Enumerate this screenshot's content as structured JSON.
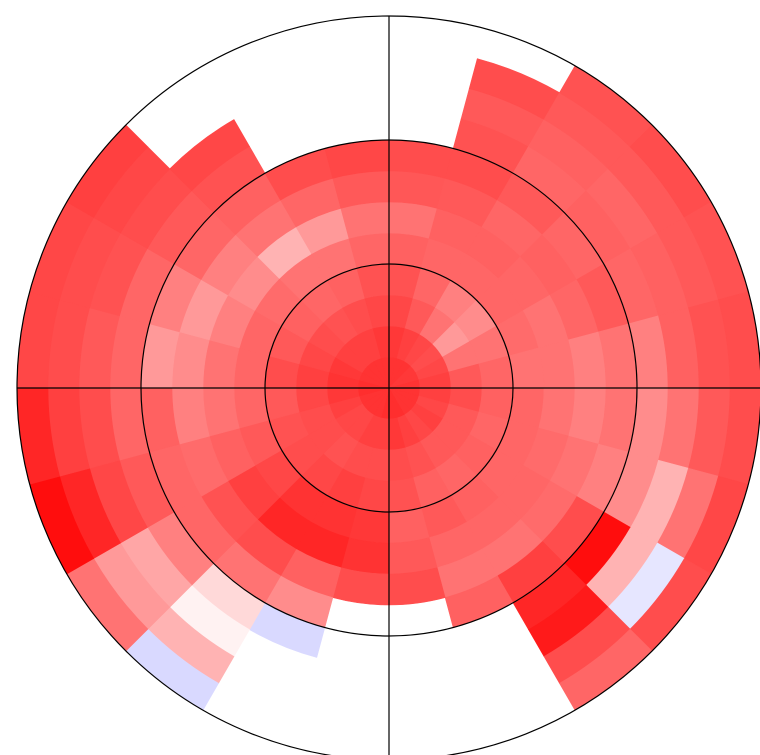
{
  "chart_data": {
    "type": "polar_heatmap",
    "direction": "clockwise",
    "zero_location": "N",
    "rlim": [
      0,
      12
    ],
    "rticks": [
      4,
      8,
      12
    ],
    "thetalim": [
      0,
      360
    ],
    "theta_ticks": [
      0,
      90,
      180,
      270
    ],
    "grid": true,
    "clim": [
      -1,
      1
    ],
    "colors": {
      "low": "#0000ff",
      "mid": "#ffffff",
      "high": "#ff0000"
    },
    "values": [
      [
        0.8,
        0.78,
        0.72,
        0.68,
        0.62,
        0.55,
        0.66,
        0.7,
        null,
        null,
        null,
        null
      ],
      [
        0.8,
        0.75,
        0.65,
        0.6,
        0.6,
        0.62,
        0.65,
        0.7,
        0.68,
        0.65,
        0.7,
        null
      ],
      [
        0.8,
        0.72,
        0.55,
        0.5,
        0.6,
        0.62,
        0.6,
        0.65,
        0.6,
        0.62,
        0.65,
        0.68
      ],
      [
        0.78,
        0.7,
        0.4,
        0.45,
        0.6,
        0.6,
        0.62,
        0.6,
        0.62,
        0.6,
        0.65,
        0.7
      ],
      [
        0.78,
        0.72,
        0.55,
        0.55,
        0.58,
        0.55,
        0.6,
        0.65,
        0.6,
        0.62,
        0.65,
        0.68
      ],
      [
        0.8,
        0.75,
        0.65,
        0.6,
        0.55,
        0.55,
        0.5,
        0.55,
        0.5,
        0.62,
        0.68,
        0.7
      ],
      [
        0.8,
        0.75,
        0.7,
        0.62,
        0.6,
        0.55,
        0.5,
        0.55,
        0.45,
        0.55,
        0.65,
        0.7
      ],
      [
        0.8,
        0.72,
        0.65,
        0.6,
        0.6,
        0.58,
        0.55,
        0.5,
        0.45,
        0.3,
        0.55,
        0.72
      ],
      [
        0.8,
        0.75,
        0.65,
        0.62,
        0.6,
        0.6,
        0.58,
        0.7,
        0.95,
        0.3,
        -0.1,
        0.7
      ],
      [
        0.8,
        0.72,
        0.65,
        0.6,
        0.62,
        0.6,
        0.55,
        0.75,
        0.85,
        0.9,
        0.7,
        0.6
      ],
      [
        0.82,
        0.75,
        0.68,
        0.62,
        0.65,
        0.6,
        0.55,
        0.62,
        null,
        null,
        null,
        null
      ],
      [
        0.82,
        0.78,
        0.7,
        0.68,
        0.62,
        0.65,
        0.7,
        null,
        null,
        null,
        null,
        null
      ],
      [
        0.82,
        0.75,
        0.7,
        0.72,
        0.78,
        0.8,
        0.7,
        null,
        null,
        null,
        null,
        null
      ],
      [
        0.8,
        0.75,
        0.7,
        0.75,
        0.8,
        0.85,
        0.62,
        0.45,
        -0.15,
        null,
        null,
        null
      ],
      [
        0.8,
        0.72,
        0.68,
        0.72,
        0.8,
        0.85,
        0.7,
        0.55,
        0.15,
        0.05,
        0.3,
        -0.15
      ],
      [
        0.8,
        0.72,
        0.7,
        0.7,
        0.72,
        0.75,
        0.68,
        0.6,
        0.5,
        0.35,
        0.4,
        0.55
      ],
      [
        0.8,
        0.75,
        0.7,
        0.68,
        0.65,
        0.62,
        0.58,
        0.6,
        0.65,
        0.72,
        0.85,
        0.95
      ],
      [
        0.82,
        0.78,
        0.72,
        0.65,
        0.6,
        0.55,
        0.5,
        0.62,
        0.6,
        0.7,
        0.75,
        0.85
      ],
      [
        0.82,
        0.8,
        0.75,
        0.7,
        0.6,
        0.55,
        0.45,
        0.4,
        0.6,
        0.65,
        0.7,
        0.72
      ],
      [
        0.8,
        0.78,
        0.72,
        0.65,
        0.6,
        0.5,
        0.4,
        0.5,
        0.6,
        0.68,
        0.7,
        0.72
      ],
      [
        0.8,
        0.75,
        0.7,
        0.62,
        0.58,
        0.45,
        0.5,
        0.6,
        0.65,
        0.7,
        0.72,
        0.75
      ],
      [
        0.8,
        0.75,
        0.68,
        0.6,
        0.55,
        0.3,
        0.55,
        0.62,
        0.68,
        0.72,
        null,
        null
      ],
      [
        0.8,
        0.75,
        0.7,
        0.62,
        0.55,
        0.4,
        0.6,
        0.7,
        null,
        null,
        null,
        null
      ],
      [
        0.8,
        0.78,
        0.72,
        0.68,
        0.6,
        0.55,
        0.65,
        0.72,
        null,
        null,
        null,
        null
      ]
    ]
  }
}
